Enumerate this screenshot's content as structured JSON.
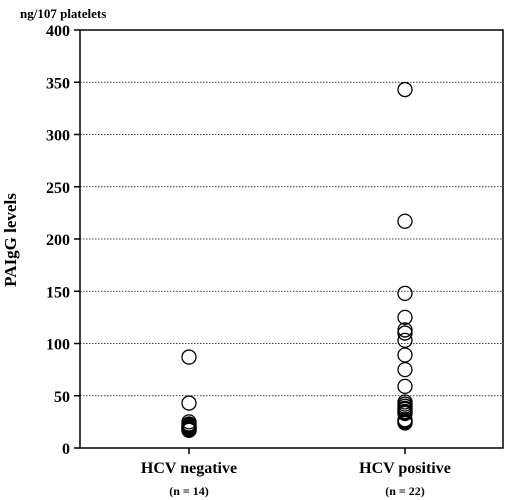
{
  "chart_data": {
    "type": "scatter",
    "title": "",
    "unit_label": "ng/107 platelets",
    "ylabel": "PAIgG levels",
    "xlabel": "",
    "ylim": [
      0,
      400
    ],
    "yticks": [
      0,
      50,
      100,
      150,
      200,
      250,
      300,
      350,
      400
    ],
    "ytick_labels": [
      "0",
      "50",
      "100",
      "150",
      "200",
      "250",
      "300",
      "350",
      "400"
    ],
    "grid": "horizontal dotted",
    "categories": [
      {
        "label": "HCV negative",
        "n_label": "(n = 14)"
      },
      {
        "label": "HCV positive",
        "n_label": "(n = 22)"
      }
    ],
    "series": [
      {
        "category": 0,
        "values": [
          87,
          43,
          25,
          23,
          22,
          21,
          20,
          20,
          19,
          19,
          18,
          18,
          17,
          17
        ]
      },
      {
        "category": 1,
        "values": [
          343,
          217,
          148,
          125,
          113,
          110,
          103,
          89,
          75,
          59,
          44,
          42,
          40,
          38,
          37,
          35,
          34,
          33,
          27,
          26,
          25,
          24
        ]
      }
    ]
  }
}
